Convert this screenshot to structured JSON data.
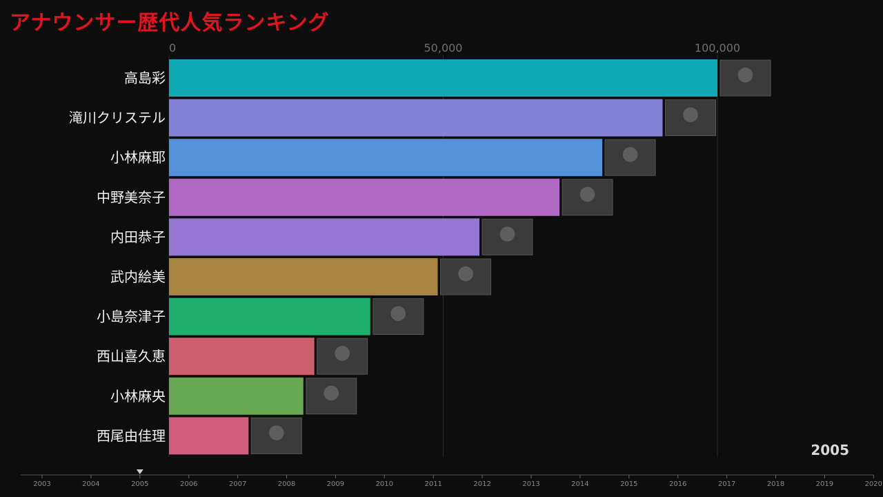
{
  "title": "アナウンサー歴代人気ランキング",
  "chart_data": {
    "type": "bar",
    "orientation": "horizontal",
    "title": "アナウンサー歴代人気ランキング",
    "categories": [
      "高島彩",
      "滝川クリステル",
      "小林麻耶",
      "中野美奈子",
      "内田恭子",
      "武内絵美",
      "小島奈津子",
      "西山喜久恵",
      "小林麻央",
      "西尾由佳理"
    ],
    "values": [
      100000,
      90000,
      79000,
      71200,
      56600,
      49000,
      36700,
      26500,
      24500,
      14500
    ],
    "colors": [
      "#10a9b6",
      "#8382d6",
      "#5591d8",
      "#b068c4",
      "#9478d4",
      "#a7843f",
      "#1fae6e",
      "#cd5f6d",
      "#68a852",
      "#d15c7c"
    ],
    "xlim": [
      0,
      112000
    ],
    "x_ticks": [
      0,
      50000,
      100000
    ],
    "x_tick_labels": [
      "0",
      "50,000",
      "100,000"
    ],
    "grid": true,
    "current_year": "2005"
  },
  "timeline": {
    "years": [
      "2003",
      "2004",
      "2005",
      "2006",
      "2007",
      "2008",
      "2009",
      "2010",
      "2011",
      "2012",
      "2013",
      "2014",
      "2015",
      "2016",
      "2017",
      "2018",
      "2019",
      "2020"
    ],
    "current": "2005"
  }
}
